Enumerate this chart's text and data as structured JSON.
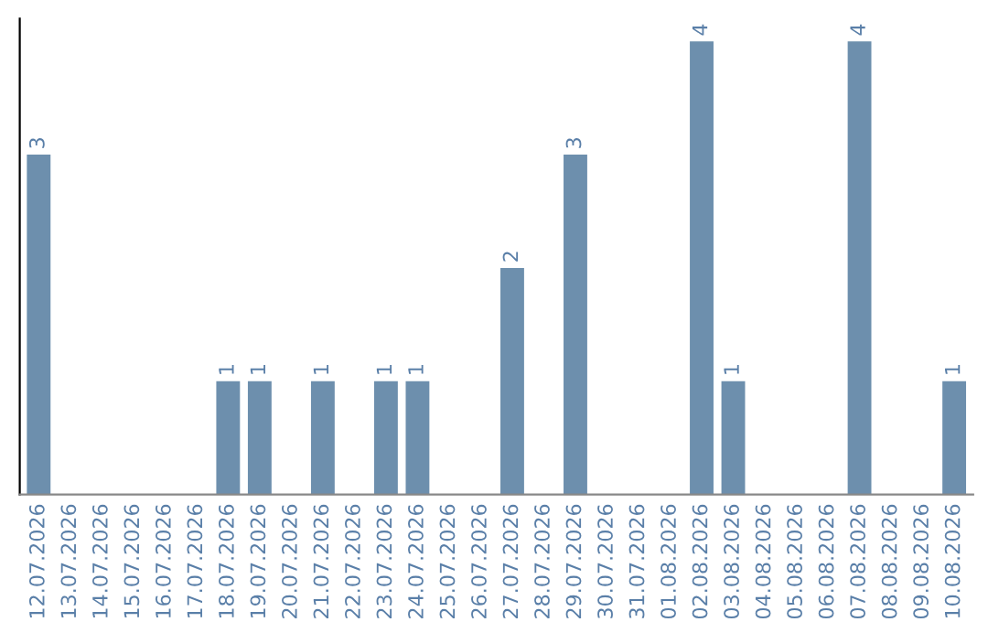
{
  "chart_data": {
    "type": "bar",
    "categories": [
      "12.07.2026",
      "13.07.2026",
      "14.07.2026",
      "15.07.2026",
      "16.07.2026",
      "17.07.2026",
      "18.07.2026",
      "19.07.2026",
      "20.07.2026",
      "21.07.2026",
      "22.07.2026",
      "23.07.2026",
      "24.07.2026",
      "25.07.2026",
      "26.07.2026",
      "27.07.2026",
      "28.07.2026",
      "29.07.2026",
      "30.07.2026",
      "31.07.2026",
      "01.08.2026",
      "02.08.2026",
      "03.08.2026",
      "04.08.2026",
      "05.08.2026",
      "06.08.2026",
      "07.08.2026",
      "08.08.2026",
      "09.08.2026",
      "10.08.2026"
    ],
    "values": [
      3,
      0,
      0,
      0,
      0,
      0,
      1,
      1,
      0,
      1,
      0,
      1,
      1,
      0,
      0,
      2,
      0,
      3,
      0,
      0,
      0,
      4,
      1,
      0,
      0,
      0,
      4,
      0,
      0,
      1
    ],
    "value_labels": [
      "3",
      null,
      null,
      null,
      null,
      null,
      "1",
      "1",
      null,
      "1",
      null,
      "1",
      "1",
      null,
      null,
      "2",
      null,
      "3",
      null,
      null,
      null,
      "4",
      "1",
      null,
      null,
      null,
      "4",
      null,
      null,
      "1"
    ],
    "color": "#6d8fad",
    "tick_labels": "x",
    "grid": false,
    "legend": false
  }
}
